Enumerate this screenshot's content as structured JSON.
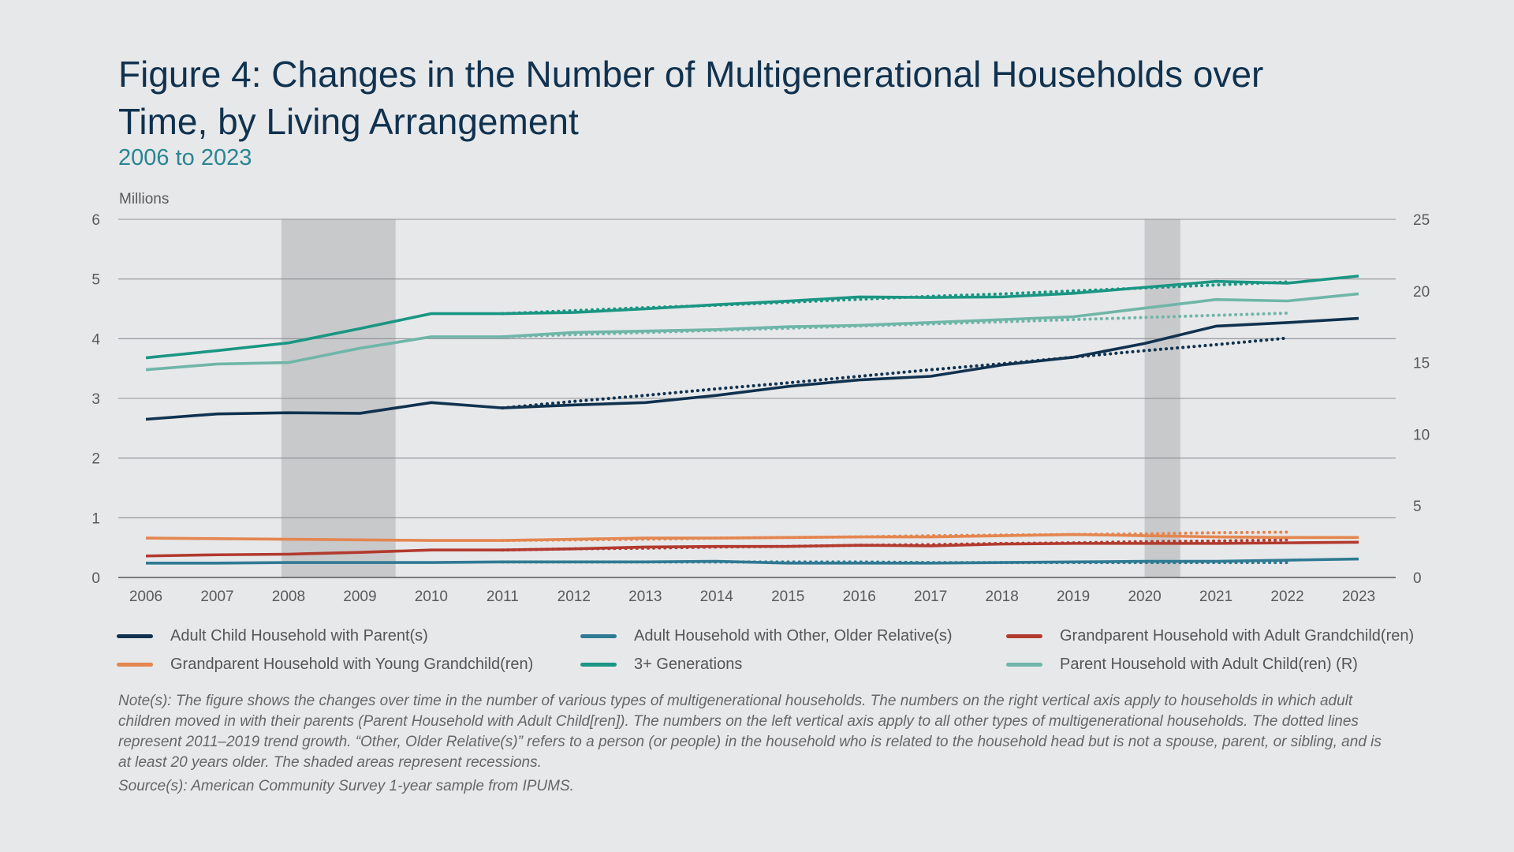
{
  "header": {
    "title": "Figure 4: Changes in the Number of Multigenerational Households over Time, by Living Arrangement",
    "subtitle": "2006 to 2023"
  },
  "footer": {
    "note": "Note(s): The figure shows the changes over time in the number of various types of multigenerational households. The numbers on the right vertical axis apply to households in which adult children moved in with their parents (Parent Household with Adult Child[ren]). The numbers on the left vertical axis apply to all other types of multigenerational households. The dotted lines represent 2011–2019 trend growth. “Other, Older Relative(s)” refers to a person (or people) in the household who is related to the household head but is not a spouse, parent, or sibling, and is at least 20 years older. The shaded areas represent recessions.",
    "source": "Source(s): American Community Survey 1-year sample from IPUMS."
  },
  "chart_data": {
    "type": "line",
    "ylabel": "Millions",
    "x": [
      2006,
      2007,
      2008,
      2009,
      2010,
      2011,
      2012,
      2013,
      2014,
      2015,
      2016,
      2017,
      2018,
      2019,
      2020,
      2021,
      2022,
      2023
    ],
    "ylim_left": [
      0,
      6
    ],
    "ylim_right": [
      0,
      25
    ],
    "yticks_left": [
      "0",
      "1",
      "2",
      "3",
      "4",
      "5",
      "6"
    ],
    "yticks_right": [
      "0",
      "5",
      "10",
      "15",
      "20",
      "25"
    ],
    "grid": true,
    "legend_position": "bottom",
    "recessions": [
      [
        2007.9,
        2009.5
      ],
      [
        2020.0,
        2020.5
      ]
    ],
    "series": [
      {
        "name": "Adult Child Household with Parent(s)",
        "axis": "left",
        "color": "#10324f",
        "values": [
          2.65,
          2.74,
          2.76,
          2.75,
          2.93,
          2.84,
          2.89,
          2.93,
          3.05,
          3.2,
          3.31,
          3.37,
          3.56,
          3.69,
          3.92,
          4.21,
          4.27,
          4.34
        ],
        "trend": [
          2.84,
          2.95,
          3.05,
          3.16,
          3.26,
          3.37,
          3.48,
          3.58,
          3.69,
          3.8,
          3.9,
          4.01
        ]
      },
      {
        "name": "Adult Household with Other, Older Relative(s)",
        "axis": "left",
        "color": "#2f7a93",
        "values": [
          0.24,
          0.24,
          0.25,
          0.25,
          0.25,
          0.26,
          0.26,
          0.26,
          0.27,
          0.24,
          0.24,
          0.24,
          0.25,
          0.26,
          0.27,
          0.27,
          0.29,
          0.31
        ],
        "trend": [
          0.26,
          0.26,
          0.26,
          0.26,
          0.26,
          0.26,
          0.25,
          0.25,
          0.25,
          0.25,
          0.25,
          0.25
        ]
      },
      {
        "name": "Grandparent Household with Adult Grandchild(ren)",
        "axis": "left",
        "color": "#b23a2e",
        "values": [
          0.36,
          0.38,
          0.39,
          0.42,
          0.46,
          0.46,
          0.48,
          0.51,
          0.52,
          0.52,
          0.54,
          0.53,
          0.56,
          0.57,
          0.57,
          0.57,
          0.58,
          0.59
        ],
        "trend": [
          0.46,
          0.48,
          0.49,
          0.51,
          0.52,
          0.54,
          0.55,
          0.57,
          0.58,
          0.6,
          0.61,
          0.63
        ]
      },
      {
        "name": "Grandparent Household with Young Grandchild(ren)",
        "axis": "left",
        "color": "#e4864f",
        "values": [
          0.66,
          0.65,
          0.64,
          0.63,
          0.62,
          0.62,
          0.64,
          0.66,
          0.66,
          0.67,
          0.68,
          0.68,
          0.7,
          0.72,
          0.7,
          0.68,
          0.67,
          0.67
        ],
        "trend": [
          0.62,
          0.63,
          0.64,
          0.66,
          0.67,
          0.68,
          0.7,
          0.71,
          0.72,
          0.73,
          0.75,
          0.76
        ]
      },
      {
        "name": "3+ Generations",
        "axis": "left",
        "color": "#1a9683",
        "values": [
          3.68,
          3.8,
          3.93,
          4.17,
          4.42,
          4.42,
          4.44,
          4.5,
          4.57,
          4.63,
          4.7,
          4.69,
          4.7,
          4.76,
          4.86,
          4.96,
          4.93,
          5.05
        ],
        "trend": [
          4.42,
          4.47,
          4.52,
          4.56,
          4.61,
          4.66,
          4.71,
          4.75,
          4.8,
          4.85,
          4.9,
          4.95
        ]
      },
      {
        "name": "Parent Household with Adult Child(ren) (R)",
        "axis": "right",
        "color": "#6fb6a8",
        "values": [
          14.5,
          14.9,
          15.0,
          16.0,
          16.8,
          16.8,
          17.1,
          17.2,
          17.3,
          17.5,
          17.6,
          17.8,
          18.0,
          18.2,
          18.8,
          19.4,
          19.3,
          19.8
        ],
        "trend": [
          16.8,
          16.95,
          17.1,
          17.25,
          17.4,
          17.55,
          17.7,
          17.85,
          18.0,
          18.15,
          18.3,
          18.45
        ]
      }
    ],
    "trend_x": [
      2011,
      2012,
      2013,
      2014,
      2015,
      2016,
      2017,
      2018,
      2019,
      2020,
      2021,
      2022
    ]
  }
}
